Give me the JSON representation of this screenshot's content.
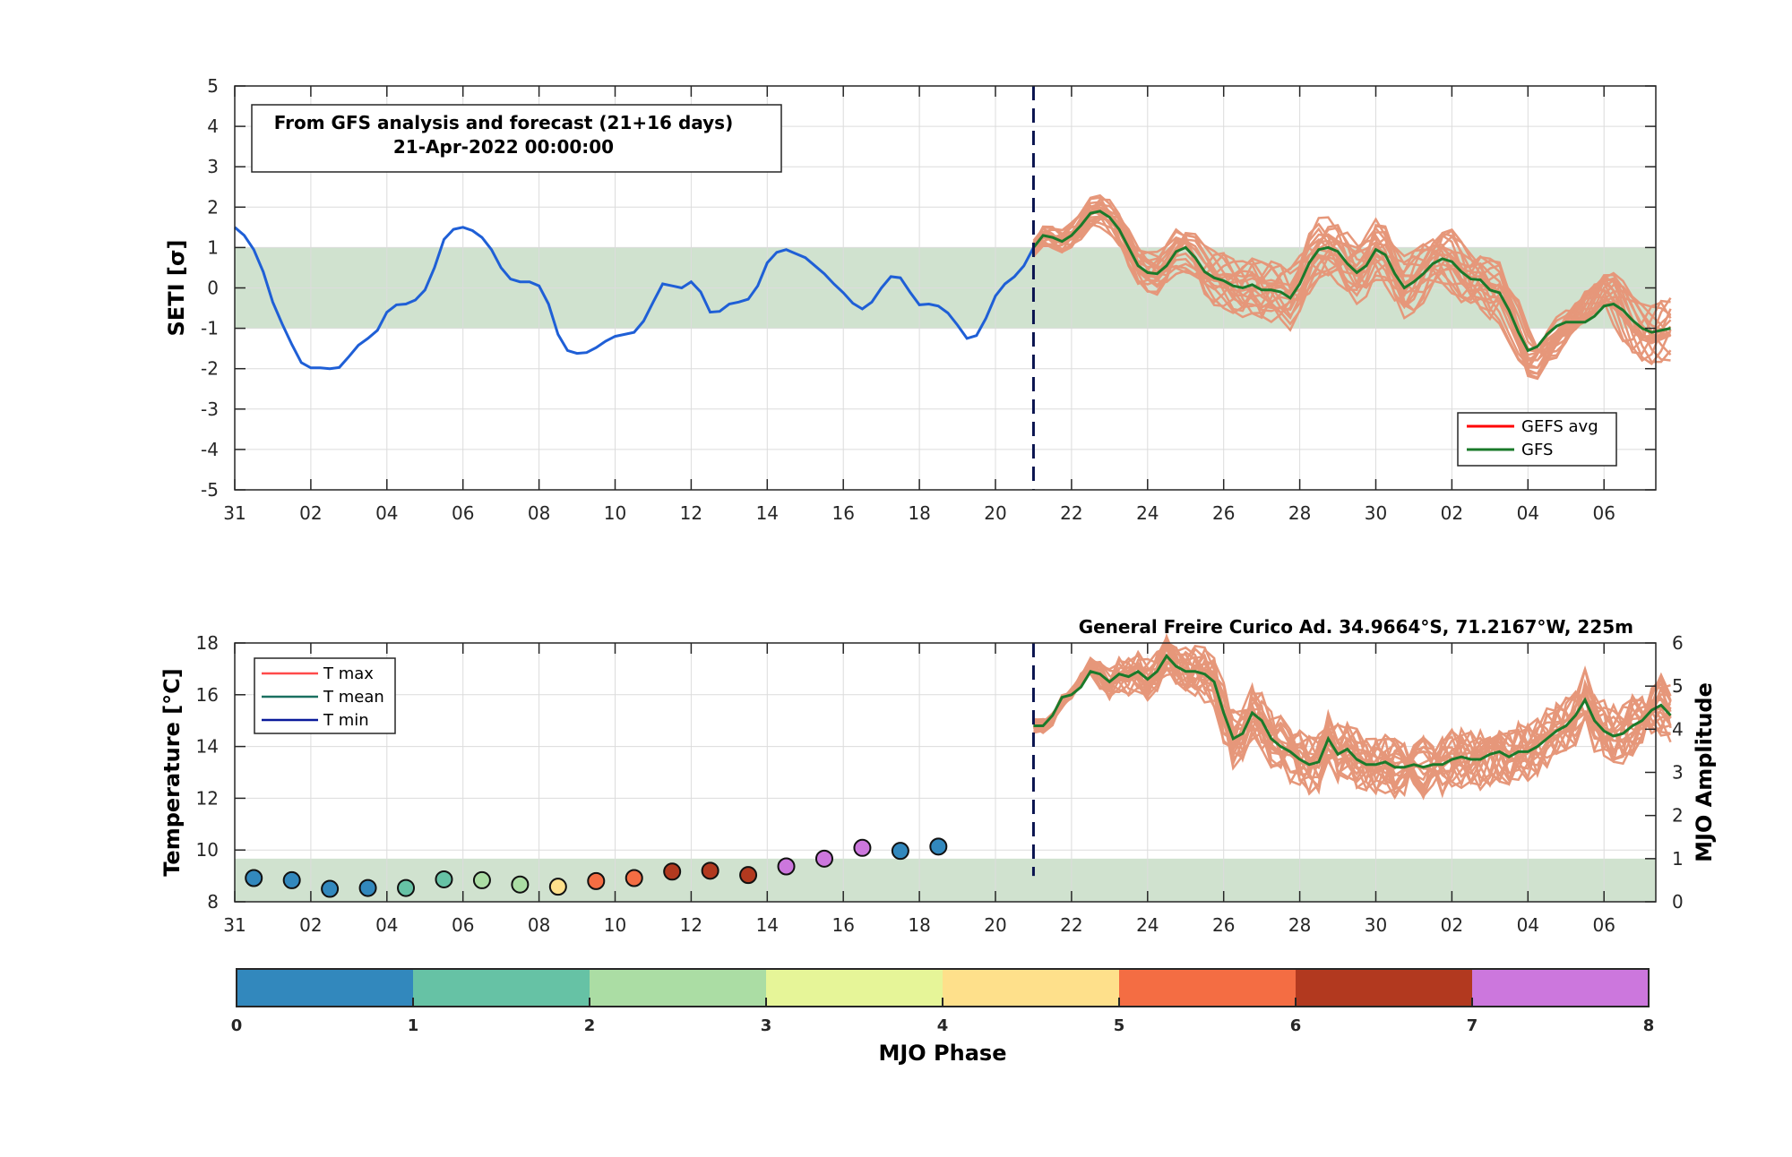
{
  "chart_data": [
    {
      "type": "line",
      "ylabel": "SETI [σ]",
      "ylim": [
        -5,
        5
      ],
      "yticks": [
        -5,
        -4,
        -3,
        -2,
        -1,
        0,
        1,
        2,
        3,
        4,
        5
      ],
      "xtick_labels": [
        "31",
        "02",
        "04",
        "06",
        "08",
        "10",
        "12",
        "14",
        "16",
        "18",
        "20",
        "22",
        "24",
        "26",
        "28",
        "30",
        "02",
        "04",
        "06"
      ],
      "xlim_days": [
        0,
        37.7
      ],
      "annotation": [
        "From GFS analysis and forecast (21+16 days)",
        "21-Apr-2022 00:00:00"
      ],
      "shaded_band": [
        -1,
        1
      ],
      "forecast_start_day": 21,
      "legend": {
        "placement": "bottom-right",
        "entries": [
          {
            "name": "GEFS avg",
            "color": "#ff0000"
          },
          {
            "name": "GFS",
            "color": "#1a7a2a"
          }
        ]
      },
      "analysis": {
        "color": "#1f5fd6",
        "x": [
          0,
          0.25,
          0.5,
          0.75,
          1,
          1.25,
          1.5,
          1.75,
          2,
          2.25,
          2.5,
          2.75,
          3,
          3.25,
          3.5,
          3.75,
          4,
          4.25,
          4.5,
          4.75,
          5,
          5.25,
          5.5,
          5.75,
          6,
          6.25,
          6.5,
          6.75,
          7,
          7.25,
          7.5,
          7.75,
          8,
          8.25,
          8.5,
          8.75,
          9,
          9.25,
          9.5,
          9.75,
          10,
          10.25,
          10.5,
          10.75,
          11,
          11.25,
          11.5,
          11.75,
          12,
          12.25,
          12.5,
          12.75,
          13,
          13.25,
          13.5,
          13.75,
          14,
          14.25,
          14.5,
          14.75,
          15,
          15.25,
          15.5,
          15.75,
          16,
          16.25,
          16.5,
          16.75,
          17,
          17.25,
          17.5,
          17.75,
          18,
          18.25,
          18.5,
          18.75,
          19,
          19.25,
          19.5,
          19.75,
          20,
          20.25,
          20.5,
          20.75,
          21
        ],
        "y": [
          1.5,
          1.3,
          0.95,
          0.4,
          -0.35,
          -0.9,
          -1.4,
          -1.85,
          -1.98,
          -1.98,
          -2.0,
          -1.97,
          -1.7,
          -1.42,
          -1.25,
          -1.05,
          -0.6,
          -0.42,
          -0.4,
          -0.3,
          -0.05,
          0.5,
          1.2,
          1.45,
          1.5,
          1.42,
          1.25,
          0.95,
          0.5,
          0.22,
          0.15,
          0.15,
          0.05,
          -0.4,
          -1.15,
          -1.55,
          -1.62,
          -1.6,
          -1.48,
          -1.32,
          -1.2,
          -1.15,
          -1.1,
          -0.82,
          -0.35,
          0.1,
          0.05,
          0.0,
          0.15,
          -0.1,
          -0.6,
          -0.58,
          -0.4,
          -0.35,
          -0.28,
          0.05,
          0.62,
          0.88,
          0.95,
          0.85,
          0.75,
          0.55,
          0.35,
          0.1,
          -0.12,
          -0.38,
          -0.52,
          -0.35,
          0.0,
          0.28,
          0.25,
          -0.1,
          -0.42,
          -0.4,
          -0.45,
          -0.62,
          -0.92,
          -1.25,
          -1.18,
          -0.75,
          -0.2,
          0.1,
          0.28,
          0.55,
          1.0
        ]
      },
      "gfs": {
        "color": "#1a7a2a",
        "x": [
          21,
          21.25,
          21.5,
          21.75,
          22,
          22.25,
          22.5,
          22.75,
          23,
          23.25,
          23.5,
          23.75,
          24,
          24.25,
          24.5,
          24.75,
          25,
          25.25,
          25.5,
          25.75,
          26,
          26.25,
          26.5,
          26.75,
          27,
          27.25,
          27.5,
          27.75,
          28,
          28.25,
          28.5,
          28.75,
          29,
          29.25,
          29.5,
          29.75,
          30,
          30.25,
          30.5,
          30.75,
          31,
          31.25,
          31.5,
          31.75,
          32,
          32.25,
          32.5,
          32.75,
          33,
          33.25,
          33.5,
          33.75,
          34,
          34.25,
          34.5,
          34.75,
          35,
          35.25,
          35.5,
          35.75,
          36,
          36.25,
          36.5,
          36.75,
          37,
          37.25,
          37.5,
          37.75
        ],
        "y": [
          1.0,
          1.3,
          1.25,
          1.15,
          1.3,
          1.55,
          1.85,
          1.9,
          1.75,
          1.45,
          1.0,
          0.55,
          0.38,
          0.35,
          0.55,
          0.9,
          1.0,
          0.75,
          0.4,
          0.25,
          0.18,
          0.05,
          0.0,
          0.08,
          -0.05,
          -0.05,
          -0.1,
          -0.25,
          0.1,
          0.62,
          0.95,
          1.0,
          0.9,
          0.6,
          0.38,
          0.55,
          0.95,
          0.82,
          0.35,
          0.0,
          0.15,
          0.35,
          0.6,
          0.72,
          0.65,
          0.4,
          0.22,
          0.2,
          -0.05,
          -0.12,
          -0.55,
          -1.1,
          -1.55,
          -1.45,
          -1.15,
          -0.95,
          -0.85,
          -0.85,
          -0.85,
          -0.7,
          -0.45,
          -0.4,
          -0.55,
          -0.8,
          -1.0,
          -1.1,
          -1.05,
          -1.0
        ]
      },
      "ensemble_color": "#e6977a",
      "ensemble_count": 20
    },
    {
      "type": "line+scatter",
      "ylabel": "Temperature [°C]",
      "ylim": [
        8,
        18
      ],
      "yticks": [
        8,
        10,
        12,
        14,
        16,
        18
      ],
      "y2label": "MJO Amplitude",
      "y2lim": [
        0,
        6
      ],
      "y2ticks": [
        0,
        1,
        2,
        3,
        4,
        5,
        6
      ],
      "title": "General Freire Curico Ad. 34.9664°S, 71.2167°W, 225m",
      "xtick_labels": [
        "31",
        "02",
        "04",
        "06",
        "08",
        "10",
        "12",
        "14",
        "16",
        "18",
        "20",
        "22",
        "24",
        "26",
        "28",
        "30",
        "02",
        "04",
        "06"
      ],
      "shaded_band_mjo": [
        0,
        1
      ],
      "forecast_start_day": 21,
      "legend": {
        "placement": "top-left",
        "entries": [
          {
            "name": "T max",
            "color": "#ff4a4a"
          },
          {
            "name": "T mean",
            "color": "#1a7060"
          },
          {
            "name": "T min",
            "color": "#0a1a9a"
          }
        ]
      },
      "gfs_tmean": {
        "color": "#1a7a2a",
        "x": [
          21,
          21.25,
          21.5,
          21.75,
          22,
          22.25,
          22.5,
          22.75,
          23,
          23.25,
          23.5,
          23.75,
          24,
          24.25,
          24.5,
          24.75,
          25,
          25.25,
          25.5,
          25.75,
          26,
          26.25,
          26.5,
          26.75,
          27,
          27.25,
          27.5,
          27.75,
          28,
          28.25,
          28.5,
          28.75,
          29,
          29.25,
          29.5,
          29.75,
          30,
          30.25,
          30.5,
          30.75,
          31,
          31.25,
          31.5,
          31.75,
          32,
          32.25,
          32.5,
          32.75,
          33,
          33.25,
          33.5,
          33.75,
          34,
          34.25,
          34.5,
          34.75,
          35,
          35.25,
          35.5,
          35.75,
          36,
          36.25,
          36.5,
          36.75,
          37,
          37.25,
          37.5,
          37.75
        ],
        "y": [
          14.8,
          14.8,
          15.2,
          15.9,
          16.0,
          16.3,
          16.9,
          16.8,
          16.5,
          16.8,
          16.7,
          16.9,
          16.6,
          16.9,
          17.5,
          17.1,
          16.9,
          16.9,
          16.8,
          16.5,
          15.3,
          14.3,
          14.5,
          15.3,
          15.0,
          14.3,
          14.0,
          13.8,
          13.5,
          13.3,
          13.4,
          14.3,
          13.7,
          13.9,
          13.5,
          13.3,
          13.3,
          13.4,
          13.2,
          13.2,
          13.3,
          13.2,
          13.3,
          13.3,
          13.5,
          13.6,
          13.5,
          13.5,
          13.7,
          13.8,
          13.6,
          13.8,
          13.8,
          14.0,
          14.3,
          14.6,
          14.8,
          15.2,
          15.8,
          15.0,
          14.6,
          14.4,
          14.5,
          14.8,
          15.0,
          15.4,
          15.6,
          15.2
        ]
      },
      "ensemble_color": "#e6977a",
      "ensemble_count": 20,
      "mjo_points": {
        "day": [
          0.5,
          1.5,
          2.5,
          3.5,
          4.5,
          5.5,
          6.5,
          7.5,
          8.5,
          9.5,
          10.5,
          11.5,
          12.5,
          13.5,
          14.5,
          15.5,
          16.5,
          17.5,
          18.5
        ],
        "amplitude": [
          0.55,
          0.5,
          0.3,
          0.32,
          0.32,
          0.52,
          0.5,
          0.4,
          0.35,
          0.48,
          0.55,
          0.7,
          0.72,
          0.62,
          0.82,
          1.0,
          1.25,
          1.18,
          1.28
        ],
        "phase_color": [
          "#3288bd",
          "#3288bd",
          "#3288bd",
          "#3288bd",
          "#66c2a5",
          "#66c2a5",
          "#abdda4",
          "#abdda4",
          "#fee08b",
          "#f46d43",
          "#f46d43",
          "#b2391f",
          "#b2391f",
          "#b2391f",
          "#cc77dd",
          "#cc77dd",
          "#cc77dd",
          "#3288bd",
          "#3288bd"
        ]
      }
    }
  ],
  "colorbar": {
    "label": "MJO Phase",
    "ticks": [
      "0",
      "1",
      "2",
      "3",
      "4",
      "5",
      "6",
      "7",
      "8"
    ],
    "colors": [
      "#3288bd",
      "#66c2a5",
      "#abdda4",
      "#e6f598",
      "#fee08b",
      "#f46d43",
      "#b2391f",
      "#cc77dd"
    ]
  }
}
